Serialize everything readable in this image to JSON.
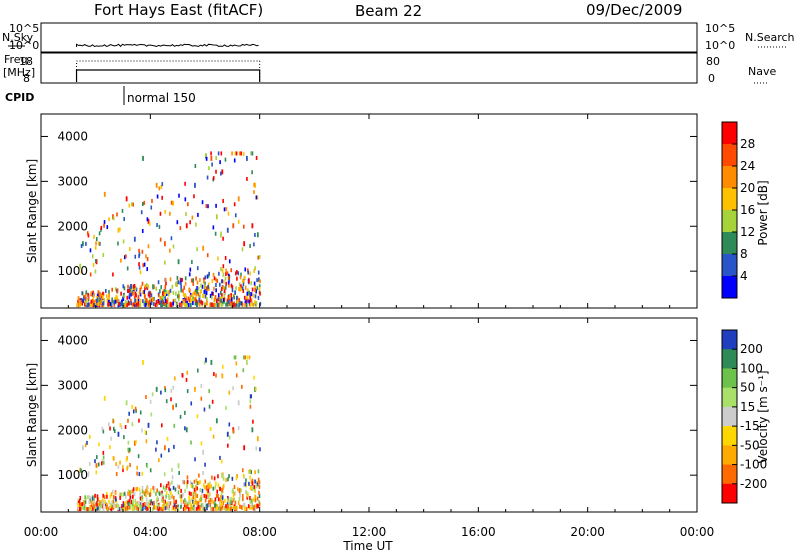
{
  "header": {
    "station": "Fort Hays East (fitACF)",
    "beam": "Beam 22",
    "date": "09/Dec/2009"
  },
  "status_panels": {
    "nsky_label": "N.Sky",
    "nsky_ticks": [
      "10^5",
      "10^0"
    ],
    "nsearch_label": "N.Search",
    "nsearch_ticks": [
      "10^5",
      "10^0"
    ],
    "freq_label_1": "Freq.",
    "freq_label_2": "[MHz]",
    "freq_ticks": [
      "18",
      "8"
    ],
    "nave_label": "Nave",
    "nave_ticks": [
      "80",
      "0"
    ],
    "cpid_label": "CPID",
    "cpid_value": "normal 150"
  },
  "axes": {
    "ylabel": "Slant Range [km]",
    "xlabel": "Time UT",
    "yticks": [
      "4000",
      "3000",
      "2000",
      "1000"
    ],
    "xticks": [
      "00:00",
      "04:00",
      "08:00",
      "12:00",
      "16:00",
      "20:00",
      "00:00"
    ]
  },
  "colorbars": {
    "power": {
      "label": "Power [dB]",
      "ticks": [
        "28",
        "24",
        "20",
        "16",
        "12",
        "8",
        "4"
      ],
      "colors": [
        "#ff0000",
        "#ff4a00",
        "#ff8c00",
        "#ffc000",
        "#a6d23a",
        "#2e8b57",
        "#2a55c8",
        "#0000ff"
      ]
    },
    "velocity": {
      "label": "Velocity [m s⁻¹]",
      "ticks": [
        "200",
        "100",
        "50",
        "15",
        "-15",
        "-50",
        "-100",
        "-200"
      ],
      "colors": [
        "#1f3fbf",
        "#2e8b57",
        "#6cc24a",
        "#a8e06a",
        "#cccccc",
        "#ffd700",
        "#ffaa00",
        "#ff6a00",
        "#ff0000"
      ]
    }
  },
  "chart_data": [
    {
      "type": "heatmap",
      "name": "power",
      "xlim": [
        0,
        24
      ],
      "ylim": [
        180,
        4500
      ],
      "data_start_hour": 1.3,
      "data_end_hour": 8.0,
      "colorbar_range": [
        0,
        30
      ],
      "scatter_points": [
        [
          1.4,
          1100,
          12
        ],
        [
          1.5,
          1600,
          8
        ],
        [
          2.0,
          1200,
          28
        ],
        [
          2.3,
          2700,
          20
        ],
        [
          2.6,
          2200,
          24
        ],
        [
          2.8,
          1900,
          16
        ],
        [
          3.1,
          2600,
          28
        ],
        [
          3.4,
          1700,
          4
        ],
        [
          3.7,
          3500,
          8
        ],
        [
          3.9,
          2100,
          28
        ],
        [
          4.2,
          2900,
          20
        ],
        [
          4.5,
          1600,
          24
        ],
        [
          4.8,
          2500,
          16
        ],
        [
          5.0,
          1200,
          8
        ],
        [
          5.3,
          2000,
          28
        ],
        [
          5.6,
          2900,
          4
        ],
        [
          5.9,
          1500,
          20
        ],
        [
          6.0,
          3550,
          8
        ],
        [
          6.2,
          3500,
          24
        ],
        [
          6.4,
          2200,
          12
        ],
        [
          6.6,
          3200,
          28
        ],
        [
          6.8,
          1900,
          4
        ],
        [
          7.0,
          2000,
          24
        ],
        [
          7.2,
          2600,
          20
        ],
        [
          7.4,
          1600,
          28
        ],
        [
          7.5,
          3500,
          4
        ],
        [
          7.7,
          2000,
          28
        ],
        [
          7.8,
          2900,
          16
        ],
        [
          7.9,
          1800,
          8
        ]
      ]
    },
    {
      "type": "heatmap",
      "name": "velocity",
      "xlim": [
        0,
        24
      ],
      "ylim": [
        180,
        4500
      ],
      "data_start_hour": 1.3,
      "data_end_hour": 8.0,
      "colorbar_range": [
        -250,
        250
      ]
    }
  ]
}
